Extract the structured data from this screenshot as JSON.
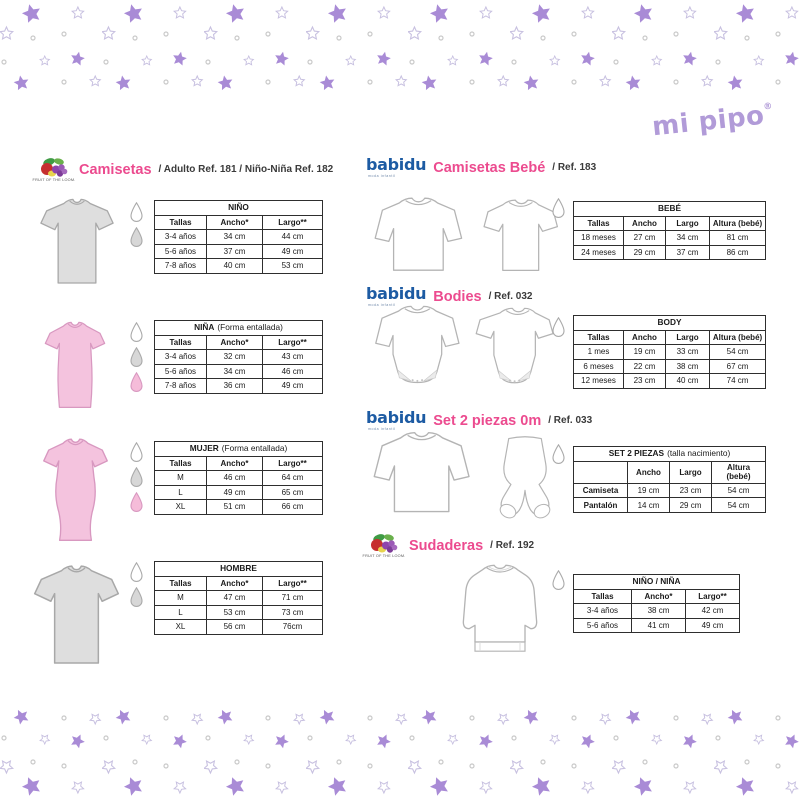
{
  "brand": {
    "mipipo": "mi pipo",
    "mipipo_registered": "®",
    "fotl_caption": "FRUIT OF THE LOOM.",
    "babidu": "babidu",
    "babidu_tagline": "moda infantil"
  },
  "colors": {
    "accent_pink": "#ec4b8f",
    "babidu_blue": "#1d5ba3",
    "star_purple": "#a98bd6",
    "mipipo_purple": "#b19bd8",
    "girl_pink": "#f4c3de",
    "shirt_gray": "#dedede"
  },
  "sections": {
    "camisetas": {
      "title": "Camisetas",
      "ref": "/ Adulto Ref. 181 / Niño-Niña Ref. 182"
    },
    "camisetas_bebe": {
      "title": "Camisetas Bebé",
      "ref": "/ Ref. 183"
    },
    "bodies": {
      "title": "Bodies",
      "ref": "/ Ref. 032"
    },
    "set": {
      "title": "Set 2 piezas 0m",
      "ref": "/ Ref. 033"
    },
    "sudaderas": {
      "title": "Sudaderas",
      "ref": "/ Ref. 192"
    }
  },
  "tables": {
    "nino": {
      "title": "NIÑO",
      "note": "",
      "columns": [
        "Tallas",
        "Ancho*",
        "Largo**"
      ],
      "rows": [
        [
          "3-4 años",
          "34 cm",
          "44 cm"
        ],
        [
          "5-6 años",
          "37 cm",
          "49 cm"
        ],
        [
          "7-8 años",
          "40 cm",
          "53 cm"
        ]
      ]
    },
    "nina": {
      "title": "NIÑA",
      "note": "(Forma entallada)",
      "columns": [
        "Tallas",
        "Ancho*",
        "Largo**"
      ],
      "rows": [
        [
          "3-4 años",
          "32 cm",
          "43 cm"
        ],
        [
          "5-6 años",
          "34 cm",
          "46 cm"
        ],
        [
          "7-8 años",
          "36 cm",
          "49 cm"
        ]
      ]
    },
    "mujer": {
      "title": "MUJER",
      "note": "(Forma entallada)",
      "columns": [
        "Tallas",
        "Ancho*",
        "Largo**"
      ],
      "rows": [
        [
          "M",
          "46 cm",
          "64 cm"
        ],
        [
          "L",
          "49 cm",
          "65 cm"
        ],
        [
          "XL",
          "51 cm",
          "66 cm"
        ]
      ]
    },
    "hombre": {
      "title": "HOMBRE",
      "note": "",
      "columns": [
        "Tallas",
        "Ancho*",
        "Largo**"
      ],
      "rows": [
        [
          "M",
          "47 cm",
          "71 cm"
        ],
        [
          "L",
          "53 cm",
          "73 cm"
        ],
        [
          "XL",
          "56 cm",
          "76cm"
        ]
      ]
    },
    "bebe": {
      "title": "BEBÉ",
      "note": "",
      "columns": [
        "Tallas",
        "Ancho",
        "Largo",
        "Altura (bebé)"
      ],
      "rows": [
        [
          "18 meses",
          "27 cm",
          "34 cm",
          "81 cm"
        ],
        [
          "24 meses",
          "29 cm",
          "37 cm",
          "86 cm"
        ]
      ]
    },
    "body": {
      "title": "BODY",
      "note": "",
      "columns": [
        "Tallas",
        "Ancho",
        "Largo",
        "Altura (bebé)"
      ],
      "rows": [
        [
          "1 mes",
          "19 cm",
          "33 cm",
          "54 cm"
        ],
        [
          "6 meses",
          "22 cm",
          "38 cm",
          "67 cm"
        ],
        [
          "12 meses",
          "23 cm",
          "40 cm",
          "74 cm"
        ]
      ]
    },
    "set2": {
      "title": "SET 2 PIEZAS",
      "note": "(talla nacimiento)",
      "columns": [
        "",
        "Ancho",
        "Largo",
        "Altura (bebé)"
      ],
      "rows": [
        [
          "Camiseta",
          "19 cm",
          "23 cm",
          "54 cm"
        ],
        [
          "Pantalón",
          "14 cm",
          "29 cm",
          "54 cm"
        ]
      ]
    },
    "sudadera": {
      "title": "NIÑO / NIÑA",
      "note": "",
      "columns": [
        "Tallas",
        "Ancho*",
        "Largo**"
      ],
      "rows": [
        [
          "3-4 años",
          "38 cm",
          "42 cm"
        ],
        [
          "5-6 años",
          "41 cm",
          "49 cm"
        ]
      ]
    }
  }
}
